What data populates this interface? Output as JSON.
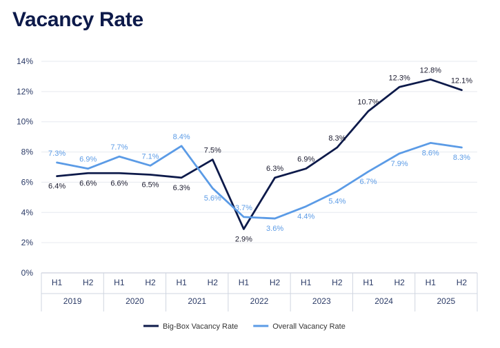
{
  "chart_data": {
    "type": "line",
    "title": "Vacancy Rate",
    "xlabel": "",
    "ylabel": "",
    "ylim": [
      0,
      14
    ],
    "yticks": [
      "0%",
      "2%",
      "4%",
      "6%",
      "8%",
      "10%",
      "12%",
      "14%"
    ],
    "grid": true,
    "legend_position": "bottom",
    "categories": [
      "H1",
      "H2",
      "H1",
      "H2",
      "H1",
      "H2",
      "H1",
      "H2",
      "H1",
      "H2",
      "H1",
      "H2",
      "H1",
      "H2"
    ],
    "groups": [
      {
        "label": "2019",
        "span": 2
      },
      {
        "label": "2020",
        "span": 2
      },
      {
        "label": "2021",
        "span": 2
      },
      {
        "label": "2022",
        "span": 2
      },
      {
        "label": "2023",
        "span": 2
      },
      {
        "label": "2024",
        "span": 2
      },
      {
        "label": "2025",
        "span": 2
      }
    ],
    "series": [
      {
        "name": "Big-Box Vacancy Rate",
        "color": "#0d1a4a",
        "values": [
          6.4,
          6.6,
          6.6,
          6.5,
          6.3,
          7.5,
          2.9,
          6.3,
          6.9,
          8.3,
          10.7,
          12.3,
          12.8,
          12.1
        ],
        "labels": [
          "6.4%",
          "6.6%",
          "6.6%",
          "6.5%",
          "6.3%",
          "7.5%",
          "2.9%",
          "6.3%",
          "6.9%",
          "8.3%",
          "10.7%",
          "12.3%",
          "12.8%",
          "12.1%"
        ]
      },
      {
        "name": "Overall Vacancy Rate",
        "color": "#5b9be6",
        "values": [
          7.3,
          6.9,
          7.7,
          7.1,
          8.4,
          5.6,
          3.7,
          3.6,
          4.4,
          5.4,
          6.7,
          7.9,
          8.6,
          8.3
        ],
        "labels": [
          "7.3%",
          "6.9%",
          "7.7%",
          "7.1%",
          "8.4%",
          "5.6%",
          "3.7%",
          "3.6%",
          "4.4%",
          "5.4%",
          "6.7%",
          "7.9%",
          "8.6%",
          "8.3%"
        ]
      }
    ]
  }
}
